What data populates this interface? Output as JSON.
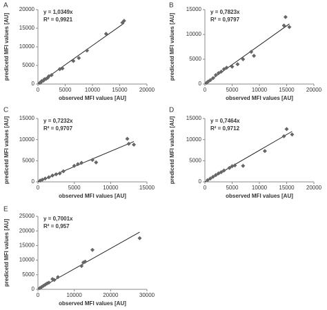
{
  "chart_data": [
    {
      "type": "scatter",
      "panel": "A",
      "x_label": "observed MFI values [AU]",
      "y_label": "predicetd MFI values [AU]",
      "color": "#666666",
      "trendline": {
        "slope": 1.0349,
        "label": "y = 1,0349x"
      },
      "r2_label": "R² = 0,9921",
      "x": [
        300,
        500,
        700,
        1000,
        1200,
        1500,
        1800,
        2000,
        2500,
        4000,
        4500,
        6500,
        7500,
        9000,
        12500,
        15500,
        15800
      ],
      "values": [
        300,
        400,
        800,
        900,
        1300,
        1400,
        1700,
        2100,
        2400,
        4000,
        4200,
        6200,
        7000,
        9000,
        13500,
        16500,
        17000
      ],
      "xlim": [
        0,
        20000
      ],
      "xticks": [
        0,
        5000,
        10000,
        15000,
        20000
      ],
      "ylim": [
        0,
        20000
      ],
      "yticks": [
        0,
        5000,
        10000,
        15000,
        20000
      ]
    },
    {
      "type": "scatter",
      "panel": "B",
      "x_label": "observed MFI values [AU]",
      "y_label": "predicetd MFI values [AU]",
      "color": "#666666",
      "trendline": {
        "slope": 0.7823,
        "label": "y = 0,7823x"
      },
      "r2_label": "R² = 0,9797",
      "x": [
        300,
        600,
        1000,
        1500,
        2000,
        2500,
        3000,
        3500,
        4000,
        5000,
        6000,
        7000,
        8500,
        9000,
        14500,
        14800,
        15500
      ],
      "values": [
        250,
        500,
        800,
        1200,
        1800,
        2200,
        2500,
        3000,
        3300,
        3500,
        4000,
        5000,
        6500,
        5700,
        11800,
        13500,
        11500
      ],
      "xlim": [
        0,
        20000
      ],
      "xticks": [
        0,
        5000,
        10000,
        15000,
        20000
      ],
      "ylim": [
        0,
        15000
      ],
      "yticks": [
        0,
        5000,
        10000,
        15000
      ]
    },
    {
      "type": "scatter",
      "panel": "C",
      "x_label": "observed MFI values [AU]",
      "y_label": "predicetd MFI values [AU]",
      "color": "#666666",
      "trendline": {
        "slope": 0.7232,
        "label": "y = 0,7232x"
      },
      "r2_label": "R² = 0,9707",
      "x": [
        300,
        600,
        1000,
        1500,
        2000,
        2500,
        3000,
        3500,
        5000,
        5500,
        6000,
        7500,
        8000,
        12300,
        12500,
        13200
      ],
      "values": [
        300,
        500,
        800,
        1100,
        1500,
        1800,
        2000,
        2500,
        3800,
        4200,
        4500,
        5200,
        4600,
        10200,
        9000,
        8800
      ],
      "xlim": [
        0,
        15000
      ],
      "xticks": [
        0,
        5000,
        10000,
        15000
      ],
      "ylim": [
        0,
        15000
      ],
      "yticks": [
        0,
        5000,
        10000,
        15000
      ]
    },
    {
      "type": "scatter",
      "panel": "D",
      "x_label": "observed MFI values [AU]",
      "y_label": "predicetd MFI values [AU]",
      "color": "#666666",
      "trendline": {
        "slope": 0.7464,
        "label": "y = 0,7464x"
      },
      "r2_label": "R² = 0,9712",
      "x": [
        500,
        1000,
        1500,
        2000,
        2500,
        3000,
        3500,
        4500,
        5000,
        5500,
        7000,
        11000,
        14500,
        15000,
        16000
      ],
      "values": [
        400,
        800,
        1200,
        1600,
        2000,
        2300,
        2700,
        3300,
        3700,
        3900,
        3800,
        7300,
        10800,
        12500,
        11200
      ],
      "xlim": [
        0,
        20000
      ],
      "xticks": [
        0,
        5000,
        10000,
        15000,
        20000
      ],
      "ylim": [
        0,
        15000
      ],
      "yticks": [
        0,
        5000,
        10000,
        15000
      ]
    },
    {
      "type": "scatter",
      "panel": "E",
      "x_label": "observed MFI values [AU]",
      "y_label": "predicetd MFI values [AU]",
      "color": "#666666",
      "trendline": {
        "slope": 0.7001,
        "label": "y = 0,7001x"
      },
      "r2_label": "R² = 0,957",
      "x": [
        500,
        1000,
        1500,
        2000,
        2500,
        3000,
        4000,
        4500,
        5500,
        12000,
        12500,
        13000,
        15000,
        28000
      ],
      "values": [
        400,
        800,
        1200,
        1600,
        2000,
        2300,
        3500,
        3200,
        4200,
        8000,
        9200,
        9500,
        13500,
        17500
      ],
      "xlim": [
        0,
        30000
      ],
      "xticks": [
        0,
        10000,
        20000,
        30000
      ],
      "ylim": [
        0,
        25000
      ],
      "yticks": [
        0,
        5000,
        10000,
        15000,
        20000,
        25000
      ]
    }
  ]
}
